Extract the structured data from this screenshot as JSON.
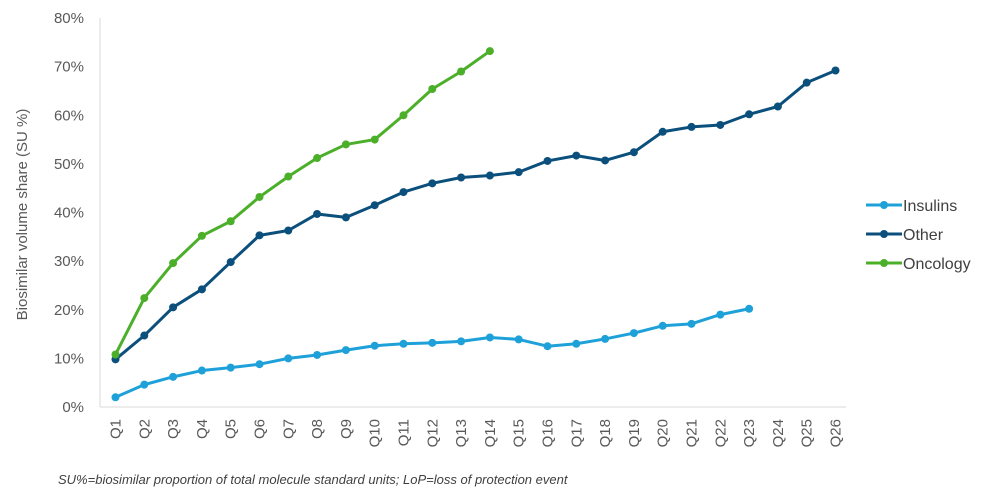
{
  "chart_data": {
    "type": "line",
    "title": "",
    "xlabel": "",
    "ylabel": "Biosimilar volume share (SU %)",
    "ylim": [
      0,
      80
    ],
    "yticks": [
      "0%",
      "10%",
      "20%",
      "30%",
      "40%",
      "50%",
      "60%",
      "70%",
      "80%"
    ],
    "categories": [
      "Q1",
      "Q2",
      "Q3",
      "Q4",
      "Q5",
      "Q6",
      "Q7",
      "Q8",
      "Q9",
      "Q10",
      "Q11",
      "Q12",
      "Q13",
      "Q14",
      "Q15",
      "Q16",
      "Q17",
      "Q18",
      "Q19",
      "Q20",
      "Q21",
      "Q22",
      "Q23",
      "Q24",
      "Q25",
      "Q26"
    ],
    "grid": false,
    "legend_position": "right",
    "series": [
      {
        "name": "Insulins",
        "color": "#1ea1d9",
        "values": [
          2,
          4.6,
          6.2,
          7.5,
          8.1,
          8.8,
          10,
          10.7,
          11.7,
          12.6,
          13,
          13.2,
          13.5,
          14.3,
          13.9,
          12.5,
          13,
          14,
          15.2,
          16.7,
          17.1,
          19,
          20.2,
          null,
          null,
          null
        ]
      },
      {
        "name": "Other",
        "color": "#0b4f7c",
        "values": [
          9.8,
          14.7,
          20.5,
          24.2,
          29.8,
          35.3,
          36.3,
          39.7,
          39,
          41.5,
          44.2,
          46,
          47.2,
          47.6,
          48.3,
          50.6,
          51.7,
          50.7,
          52.4,
          56.6,
          57.6,
          58,
          60.2,
          61.8,
          66.7,
          69.2
        ]
      },
      {
        "name": "Oncology",
        "color": "#4caf2a",
        "values": [
          10.8,
          22.4,
          29.6,
          35.2,
          38.2,
          43.2,
          47.4,
          51.2,
          54,
          55,
          60,
          65.4,
          69,
          73.2,
          null,
          null,
          null,
          null,
          null,
          null,
          null,
          null,
          null,
          null,
          null,
          null
        ]
      }
    ]
  },
  "footnote": "SU%=biosimilar proportion of total molecule standard units; LoP=loss of protection event"
}
